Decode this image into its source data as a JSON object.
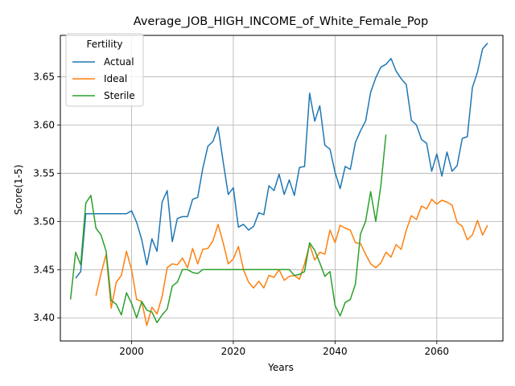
{
  "chart_data": {
    "type": "line",
    "title": "Average_JOB_HIGH_INCOME_of_White_Female_Pop",
    "xlabel": "Years",
    "ylabel": "Score(1-5)",
    "xlim": [
      1986,
      2073
    ],
    "ylim": [
      3.376,
      3.693
    ],
    "xticks": [
      2000,
      2020,
      2040,
      2060
    ],
    "yticks": [
      3.4,
      3.45,
      3.5,
      3.55,
      3.6,
      3.65
    ],
    "ytick_labels": [
      "3.40",
      "3.45",
      "3.50",
      "3.55",
      "3.60",
      "3.65"
    ],
    "grid": true,
    "legend": {
      "title": "Fertility",
      "placement": "upper-left"
    },
    "series": [
      {
        "name": "Actual",
        "color": "#1f77b4",
        "x": [
          1989,
          1990,
          1991,
          1992,
          1993,
          1994,
          1995,
          1996,
          1997,
          1998,
          1999,
          2000,
          2001,
          2002,
          2003,
          2004,
          2005,
          2006,
          2007,
          2008,
          2009,
          2010,
          2011,
          2012,
          2013,
          2014,
          2015,
          2016,
          2017,
          2018,
          2019,
          2020,
          2021,
          2022,
          2023,
          2024,
          2025,
          2026,
          2027,
          2028,
          2029,
          2030,
          2031,
          2032,
          2033,
          2034,
          2035,
          2036,
          2037,
          2038,
          2039,
          2040,
          2041,
          2042,
          2043,
          2044,
          2045,
          2046,
          2047,
          2048,
          2049,
          2050,
          2051,
          2052,
          2053,
          2054,
          2055,
          2056,
          2057,
          2058,
          2059,
          2060,
          2061,
          2062,
          2063,
          2064,
          2065,
          2066,
          2067,
          2068,
          2069,
          2070
        ],
        "values": [
          3.441,
          3.448,
          3.508,
          3.508,
          3.508,
          3.508,
          3.508,
          3.508,
          3.508,
          3.508,
          3.508,
          3.511,
          3.499,
          3.481,
          3.455,
          3.482,
          3.469,
          3.52,
          3.532,
          3.479,
          3.503,
          3.505,
          3.505,
          3.523,
          3.525,
          3.555,
          3.578,
          3.583,
          3.598,
          3.562,
          3.528,
          3.535,
          3.494,
          3.497,
          3.491,
          3.495,
          3.509,
          3.507,
          3.537,
          3.532,
          3.549,
          3.528,
          3.543,
          3.527,
          3.556,
          3.557,
          3.633,
          3.604,
          3.62,
          3.579,
          3.575,
          3.551,
          3.534,
          3.557,
          3.554,
          3.582,
          3.594,
          3.604,
          3.634,
          3.649,
          3.66,
          3.663,
          3.669,
          3.656,
          3.648,
          3.642,
          3.605,
          3.6,
          3.585,
          3.581,
          3.552,
          3.57,
          3.547,
          3.572,
          3.552,
          3.558,
          3.586,
          3.588,
          3.639,
          3.655,
          3.679,
          3.685
        ]
      },
      {
        "name": "Ideal",
        "color": "#ff7f0e",
        "x": [
          1993,
          1994,
          1995,
          1996,
          1997,
          1998,
          1999,
          2000,
          2001,
          2002,
          2003,
          2004,
          2005,
          2006,
          2007,
          2008,
          2009,
          2010,
          2011,
          2012,
          2013,
          2014,
          2015,
          2016,
          2017,
          2018,
          2019,
          2020,
          2021,
          2022,
          2023,
          2024,
          2025,
          2026,
          2027,
          2028,
          2029,
          2030,
          2031,
          2032,
          2033,
          2034,
          2035,
          2036,
          2037,
          2038,
          2039,
          2040,
          2041,
          2042,
          2043,
          2044,
          2045,
          2046,
          2047,
          2048,
          2049,
          2050,
          2051,
          2052,
          2053,
          2054,
          2055,
          2056,
          2057,
          2058,
          2059,
          2060,
          2061,
          2062,
          2063,
          2064,
          2065,
          2066,
          2067,
          2068,
          2069,
          2070
        ],
        "values": [
          3.423,
          3.446,
          3.466,
          3.41,
          3.437,
          3.444,
          3.469,
          3.45,
          3.419,
          3.417,
          3.392,
          3.411,
          3.404,
          3.422,
          3.452,
          3.456,
          3.455,
          3.462,
          3.452,
          3.472,
          3.456,
          3.471,
          3.472,
          3.48,
          3.497,
          3.478,
          3.456,
          3.461,
          3.474,
          3.45,
          3.437,
          3.431,
          3.438,
          3.431,
          3.444,
          3.442,
          3.45,
          3.439,
          3.443,
          3.444,
          3.44,
          3.456,
          3.476,
          3.46,
          3.468,
          3.466,
          3.491,
          3.478,
          3.496,
          3.493,
          3.491,
          3.478,
          3.477,
          3.466,
          3.456,
          3.452,
          3.457,
          3.468,
          3.463,
          3.476,
          3.471,
          3.491,
          3.506,
          3.502,
          3.516,
          3.513,
          3.523,
          3.518,
          3.522,
          3.52,
          3.517,
          3.499,
          3.495,
          3.481,
          3.486,
          3.501,
          3.486,
          3.496
        ]
      },
      {
        "name": "Sterile",
        "color": "#2ca02c",
        "x": [
          1988,
          1989,
          1990,
          1991,
          1992,
          1993,
          1994,
          1995,
          1996,
          1997,
          1998,
          1999,
          2000,
          2001,
          2002,
          2003,
          2004,
          2005,
          2006,
          2007,
          2008,
          2009,
          2010,
          2011,
          2012,
          2013,
          2014,
          2015,
          2016,
          2017,
          2018,
          2019,
          2020,
          2021,
          2022,
          2023,
          2024,
          2025,
          2026,
          2027,
          2028,
          2029,
          2030,
          2031,
          2032,
          2033,
          2034,
          2035,
          2036,
          2037,
          2038,
          2039,
          2040,
          2041,
          2042,
          2043,
          2044,
          2045,
          2046,
          2047,
          2048,
          2049,
          2050
        ],
        "values": [
          3.419,
          3.468,
          3.455,
          3.519,
          3.527,
          3.493,
          3.486,
          3.469,
          3.418,
          3.414,
          3.403,
          3.426,
          3.415,
          3.4,
          3.417,
          3.408,
          3.406,
          3.395,
          3.403,
          3.409,
          3.433,
          3.437,
          3.45,
          3.45,
          3.447,
          3.446,
          3.45,
          3.45,
          3.45,
          3.45,
          3.45,
          3.45,
          3.45,
          3.45,
          3.45,
          3.45,
          3.45,
          3.45,
          3.45,
          3.45,
          3.45,
          3.45,
          3.45,
          3.45,
          3.444,
          3.445,
          3.448,
          3.478,
          3.47,
          3.457,
          3.443,
          3.448,
          3.413,
          3.402,
          3.416,
          3.419,
          3.435,
          3.487,
          3.5,
          3.531,
          3.5,
          3.537,
          3.59
        ]
      }
    ]
  }
}
